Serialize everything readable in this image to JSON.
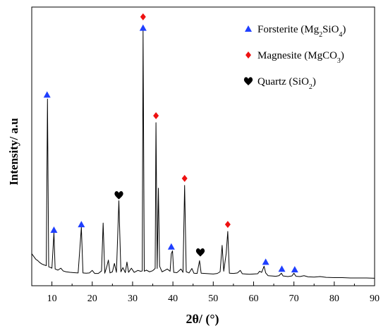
{
  "chart_data": {
    "type": "line",
    "title": "",
    "xlabel": "2θ/ (°)",
    "ylabel": "Intensity/ a.u",
    "xlim": [
      5,
      90
    ],
    "ylim": [
      0,
      100
    ],
    "xticks": [
      10,
      20,
      30,
      40,
      50,
      60,
      70,
      80,
      90
    ],
    "yticks_shown": false,
    "grid": false,
    "legend_position": "top-right",
    "series": [
      {
        "points": [
          [
            5.0,
            11.5
          ],
          [
            5.5,
            10.5
          ],
          [
            6.0,
            9.5
          ],
          [
            6.5,
            9.0
          ],
          [
            7.0,
            8.3
          ],
          [
            7.5,
            7.8
          ],
          [
            8.0,
            7.5
          ],
          [
            8.6,
            7.2
          ],
          [
            8.9,
            67.0
          ],
          [
            9.2,
            6.8
          ],
          [
            9.6,
            6.6
          ],
          [
            10.0,
            6.3
          ],
          [
            10.5,
            19.0
          ],
          [
            10.8,
            6.0
          ],
          [
            11.5,
            5.6
          ],
          [
            12.2,
            6.3
          ],
          [
            12.8,
            5.3
          ],
          [
            13.5,
            5.0
          ],
          [
            14.5,
            4.8
          ],
          [
            15.5,
            4.7
          ],
          [
            16.5,
            4.6
          ],
          [
            17.3,
            21.0
          ],
          [
            17.7,
            4.6
          ],
          [
            18.5,
            4.5
          ],
          [
            19.3,
            4.6
          ],
          [
            20.0,
            5.5
          ],
          [
            20.6,
            4.4
          ],
          [
            21.5,
            4.4
          ],
          [
            22.3,
            5.3
          ],
          [
            22.7,
            22.5
          ],
          [
            23.1,
            4.5
          ],
          [
            23.6,
            6.8
          ],
          [
            24.0,
            9.2
          ],
          [
            24.4,
            4.6
          ],
          [
            25.0,
            5.0
          ],
          [
            25.5,
            8.0
          ],
          [
            26.0,
            4.8
          ],
          [
            26.6,
            30.5
          ],
          [
            27.1,
            5.0
          ],
          [
            27.6,
            6.5
          ],
          [
            28.2,
            4.7
          ],
          [
            28.6,
            8.5
          ],
          [
            29.0,
            4.8
          ],
          [
            29.7,
            6.3
          ],
          [
            30.4,
            4.8
          ],
          [
            31.3,
            5.5
          ],
          [
            32.0,
            5.2
          ],
          [
            32.4,
            5.3
          ],
          [
            32.6,
            91.5
          ],
          [
            32.9,
            5.2
          ],
          [
            33.4,
            5.6
          ],
          [
            34.2,
            5.0
          ],
          [
            35.0,
            5.4
          ],
          [
            35.6,
            6.2
          ],
          [
            35.8,
            58.5
          ],
          [
            36.1,
            6.2
          ],
          [
            36.4,
            35.0
          ],
          [
            36.7,
            7.0
          ],
          [
            37.3,
            5.0
          ],
          [
            38.0,
            5.5
          ],
          [
            38.6,
            6.0
          ],
          [
            39.3,
            5.2
          ],
          [
            39.6,
            11.5
          ],
          [
            39.9,
            12.5
          ],
          [
            40.2,
            4.8
          ],
          [
            41.0,
            4.7
          ],
          [
            42.0,
            6.0
          ],
          [
            42.5,
            4.8
          ],
          [
            42.9,
            36.0
          ],
          [
            43.3,
            5.0
          ],
          [
            44.0,
            4.6
          ],
          [
            44.7,
            6.2
          ],
          [
            45.2,
            4.5
          ],
          [
            46.0,
            4.4
          ],
          [
            46.6,
            9.0
          ],
          [
            47.0,
            4.5
          ],
          [
            48.0,
            4.4
          ],
          [
            49.0,
            4.3
          ],
          [
            50.0,
            4.2
          ],
          [
            51.0,
            4.4
          ],
          [
            51.7,
            5.0
          ],
          [
            52.2,
            14.5
          ],
          [
            52.6,
            5.2
          ],
          [
            53.2,
            11.5
          ],
          [
            53.6,
            19.5
          ],
          [
            54.0,
            4.5
          ],
          [
            55.0,
            4.4
          ],
          [
            56.0,
            4.6
          ],
          [
            56.7,
            5.5
          ],
          [
            57.2,
            4.3
          ],
          [
            58.0,
            4.2
          ],
          [
            59.0,
            4.1
          ],
          [
            60.0,
            4.2
          ],
          [
            61.0,
            4.3
          ],
          [
            61.5,
            5.2
          ],
          [
            62.0,
            4.8
          ],
          [
            62.6,
            7.0
          ],
          [
            63.0,
            4.6
          ],
          [
            63.6,
            3.6
          ],
          [
            64.5,
            3.5
          ],
          [
            65.5,
            3.4
          ],
          [
            66.3,
            3.6
          ],
          [
            66.9,
            4.5
          ],
          [
            67.3,
            3.5
          ],
          [
            68.5,
            3.3
          ],
          [
            69.5,
            3.5
          ],
          [
            70.0,
            4.5
          ],
          [
            70.5,
            3.4
          ],
          [
            71.5,
            3.3
          ],
          [
            72.5,
            3.6
          ],
          [
            73.5,
            3.2
          ],
          [
            75.0,
            3.1
          ],
          [
            76.5,
            3.3
          ],
          [
            78.0,
            3.0
          ],
          [
            80.0,
            2.9
          ],
          [
            82.0,
            2.9
          ],
          [
            84.0,
            2.8
          ],
          [
            86.0,
            2.8
          ],
          [
            88.0,
            2.8
          ],
          [
            90.0,
            2.7
          ]
        ]
      }
    ],
    "markers": [
      {
        "phase": "forsterite",
        "x": 8.8,
        "y": 68.5
      },
      {
        "phase": "forsterite",
        "x": 10.5,
        "y": 20.0
      },
      {
        "phase": "forsterite",
        "x": 17.3,
        "y": 22.0
      },
      {
        "phase": "forsterite",
        "x": 32.6,
        "y": 92.5
      },
      {
        "phase": "forsterite",
        "x": 39.6,
        "y": 14.0
      },
      {
        "phase": "forsterite",
        "x": 63.0,
        "y": 8.5
      },
      {
        "phase": "forsterite",
        "x": 67.0,
        "y": 6.0
      },
      {
        "phase": "forsterite",
        "x": 70.2,
        "y": 5.8
      },
      {
        "phase": "magnesite",
        "x": 32.6,
        "y": 96.5
      },
      {
        "phase": "magnesite",
        "x": 35.8,
        "y": 61.0
      },
      {
        "phase": "magnesite",
        "x": 42.9,
        "y": 38.5
      },
      {
        "phase": "magnesite",
        "x": 53.6,
        "y": 22.0
      },
      {
        "phase": "quartz",
        "x": 26.6,
        "y": 32.5
      },
      {
        "phase": "quartz",
        "x": 46.8,
        "y": 12.0
      }
    ],
    "legend": [
      {
        "phase": "forsterite",
        "label": "Forsterite (Mg",
        "sub1": "2",
        "mid": "SiO",
        "sub2": "4",
        "end": ")",
        "color": "#1f3fff"
      },
      {
        "phase": "magnesite",
        "label": "Magnesite (MgCO",
        "sub1": "3",
        "mid": "",
        "sub2": "",
        "end": ")",
        "color": "#ee1111"
      },
      {
        "phase": "quartz",
        "label": "Quartz (SiO",
        "sub1": "2",
        "mid": "",
        "sub2": "",
        "end": ")",
        "color": "#000000"
      }
    ]
  }
}
